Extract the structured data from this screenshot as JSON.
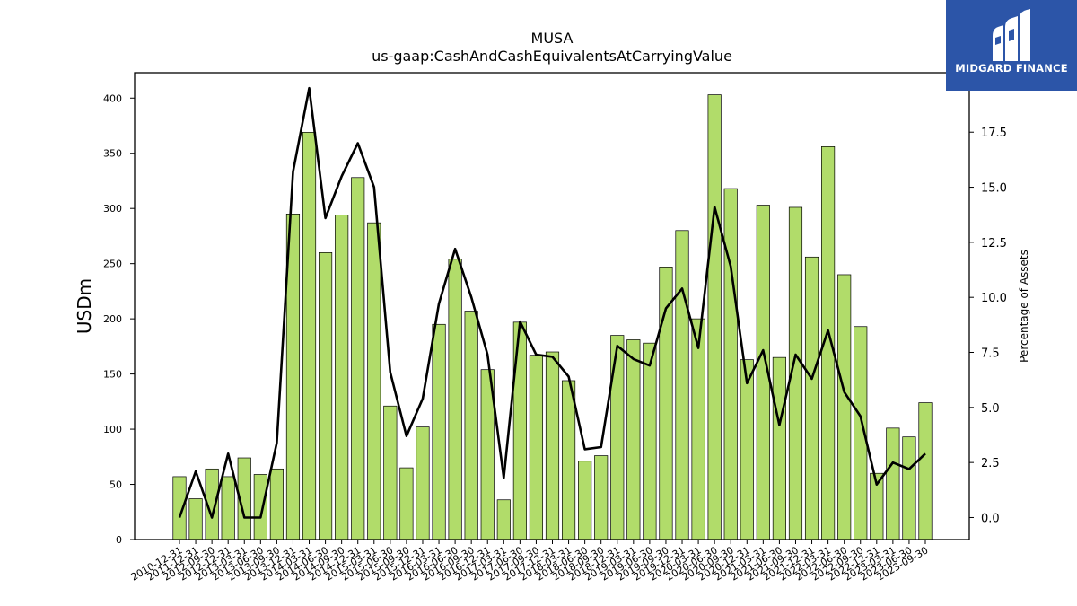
{
  "logo": {
    "text": "MIDGARD FINANCE",
    "bg_color": "#2c55a8"
  },
  "chart_data": {
    "type": "bar",
    "title": "MUSA",
    "subtitle": "us-gaap:CashAndCashEquivalentsAtCarryingValue",
    "ylabel": "USDm",
    "ylabel_right": "Percentage of Assets",
    "ylim": [
      0,
      423
    ],
    "ylim_right": [
      -1.0,
      20.2
    ],
    "yticks": [
      0,
      50,
      100,
      150,
      200,
      250,
      300,
      350,
      400
    ],
    "yticks_right": [
      "0.0",
      "2.5",
      "5.0",
      "7.5",
      "10.0",
      "12.5",
      "15.0",
      "17.5"
    ],
    "bar_color": "#b1dc6a",
    "line_color": "#000000",
    "categories": [
      "2010-12-31",
      "2011-12-31",
      "2012-09-30",
      "2012-12-31",
      "2013-03-31",
      "2013-06-30",
      "2013-09-30",
      "2013-12-31",
      "2014-03-31",
      "2014-06-30",
      "2014-09-30",
      "2014-12-31",
      "2015-03-31",
      "2015-06-30",
      "2015-09-30",
      "2015-12-31",
      "2016-03-31",
      "2016-06-30",
      "2016-09-30",
      "2016-12-31",
      "2017-03-31",
      "2017-06-30",
      "2017-09-30",
      "2017-12-31",
      "2018-03-31",
      "2018-06-30",
      "2018-09-30",
      "2018-12-31",
      "2019-03-31",
      "2019-06-30",
      "2019-09-30",
      "2019-12-31",
      "2020-03-31",
      "2020-06-30",
      "2020-09-30",
      "2020-12-31",
      "2021-03-31",
      "2021-06-30",
      "2021-09-30",
      "2021-12-31",
      "2022-03-31",
      "2022-06-30",
      "2022-09-30",
      "2022-12-31",
      "2023-03-31",
      "2023-06-30",
      "2023-09-30"
    ],
    "series": [
      {
        "name": "USDm",
        "axis": "left",
        "kind": "bar",
        "values": [
          57,
          37,
          64,
          57,
          74,
          59,
          64,
          295,
          369,
          260,
          294,
          328,
          287,
          121,
          65,
          102,
          195,
          254,
          207,
          154,
          36,
          197,
          167,
          170,
          144,
          71,
          76,
          185,
          181,
          178,
          247,
          280,
          200,
          403,
          318,
          163,
          303,
          165,
          301,
          256,
          356,
          240,
          193,
          60,
          101,
          93,
          124
        ]
      },
      {
        "name": "Percentage of Assets",
        "axis": "right",
        "kind": "line",
        "values": [
          0.0,
          2.1,
          0.0,
          2.9,
          0.0,
          0.0,
          3.4,
          15.7,
          19.5,
          13.6,
          15.5,
          17.0,
          15.0,
          6.6,
          3.7,
          5.4,
          9.7,
          12.2,
          10.0,
          7.4,
          1.8,
          8.9,
          7.4,
          7.3,
          6.4,
          3.1,
          3.2,
          7.8,
          7.2,
          6.9,
          9.5,
          10.4,
          7.7,
          14.1,
          11.4,
          6.1,
          7.6,
          4.2,
          7.4,
          6.3,
          8.5,
          5.7,
          4.6,
          1.5,
          2.5,
          2.2,
          2.9
        ]
      }
    ]
  }
}
